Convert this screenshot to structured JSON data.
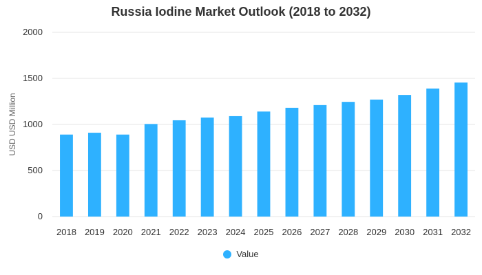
{
  "colors": {
    "bar": "#2eb1ff",
    "grid": "#e6e6e6",
    "axis_text": "#333333"
  },
  "chart_data": {
    "type": "bar",
    "title": "Russia Iodine Market Outlook (2018 to 2032)",
    "xlabel": "",
    "ylabel": "USD USD Million",
    "ylim": [
      0,
      2000
    ],
    "yticks": [
      "0",
      "500",
      "1000",
      "1500",
      "2000"
    ],
    "grid": true,
    "legend_position": "bottom",
    "categories": [
      "2018",
      "2019",
      "2020",
      "2021",
      "2022",
      "2023",
      "2024",
      "2025",
      "2026",
      "2027",
      "2028",
      "2029",
      "2030",
      "2031",
      "2032"
    ],
    "series": [
      {
        "name": "Value",
        "values": [
          890,
          910,
          890,
          1005,
          1045,
          1075,
          1090,
          1140,
          1180,
          1210,
          1245,
          1270,
          1320,
          1390,
          1455
        ]
      }
    ]
  }
}
